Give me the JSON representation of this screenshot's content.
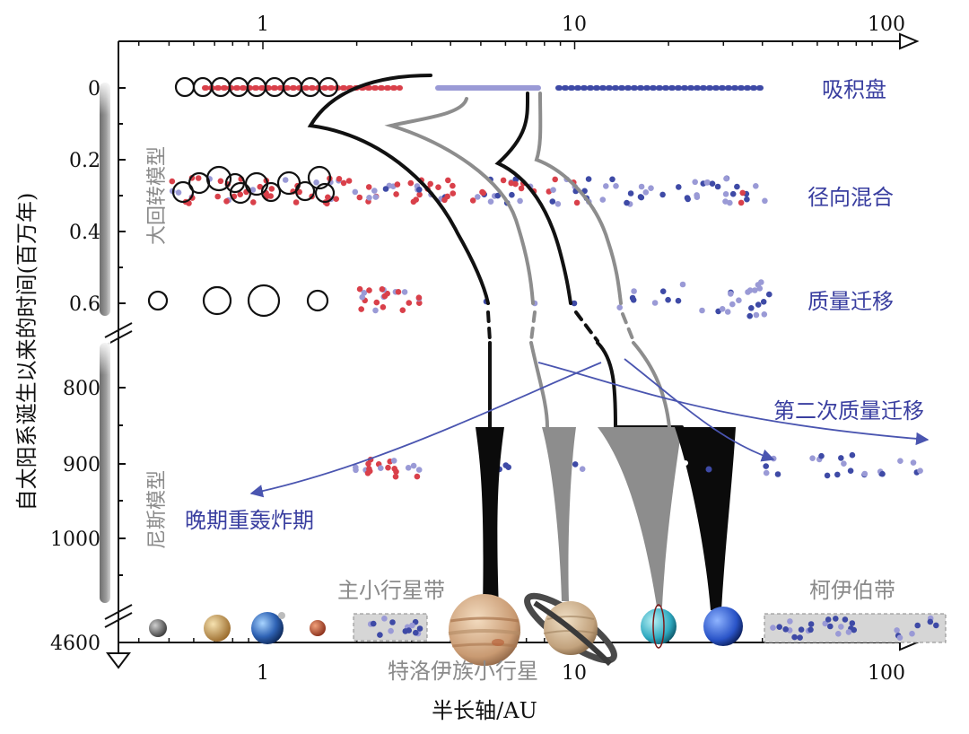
{
  "diagram": {
    "x_axis": {
      "title": "半长轴/AU",
      "ticks": [
        "1",
        "10",
        "100"
      ],
      "scale": "log"
    },
    "y_axis": {
      "title": "自太阳系诞生以来的时间(百万年)",
      "upper_ticks": [
        "0",
        "0.2",
        "0.4",
        "0.6"
      ],
      "lower_ticks": [
        "800",
        "900",
        "1000"
      ],
      "bottom_tick": "4600"
    },
    "models": {
      "grand_tack": "大回转模型",
      "nice": "尼斯模型"
    },
    "stages": {
      "accretion_disk": "吸积盘",
      "radial_mixing": "径向混合",
      "mass_migration": "质量迁移"
    },
    "events": {
      "second_migration": "第二次质量迁移",
      "late_heavy_bombardment": "晚期重轰炸期"
    },
    "regions": {
      "main_belt": "主小行星带",
      "kuiper_belt": "柯伊伯带",
      "trojans": "特洛伊族小行星"
    },
    "colors": {
      "inner_red": "#d9404a",
      "outer_blue": "#3e4aa6",
      "light_purple": "#9a9ad6",
      "label_blue": "#3a3fa0",
      "gray": "#8a8a8a"
    }
  }
}
